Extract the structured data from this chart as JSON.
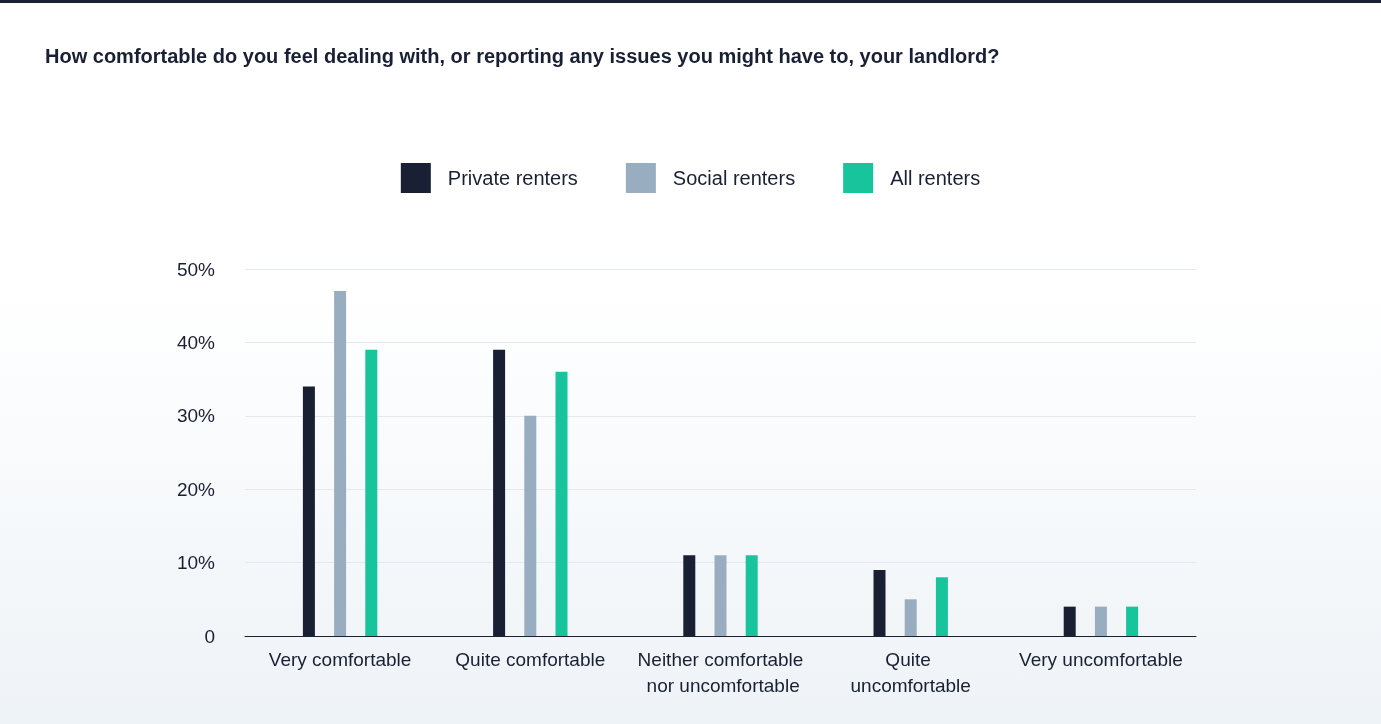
{
  "chart_data": {
    "type": "bar",
    "title": "How comfortable do you feel dealing with, or reporting any issues you might have to, your landlord?",
    "categories": [
      "Very comfortable",
      "Quite comfortable",
      "Neither comfortable nor uncomfortable",
      "Quite uncomfortable",
      "Very uncomfortable"
    ],
    "series": [
      {
        "name": "Private renters",
        "color": "#1a2033",
        "values": [
          34,
          39,
          11,
          9,
          4
        ]
      },
      {
        "name": "Social renters",
        "color": "#98adc0",
        "values": [
          47,
          30,
          11,
          5,
          4
        ]
      },
      {
        "name": "All renters",
        "color": "#17c49c",
        "values": [
          39,
          36,
          11,
          8,
          4
        ]
      }
    ],
    "ylim": [
      0,
      50
    ],
    "yticks": [
      {
        "value": 0,
        "label": "0"
      },
      {
        "value": 10,
        "label": "10%"
      },
      {
        "value": 20,
        "label": "20%"
      },
      {
        "value": 30,
        "label": "30%"
      },
      {
        "value": 40,
        "label": "40%"
      },
      {
        "value": 50,
        "label": "50%"
      }
    ],
    "grid": "y",
    "legend": "top"
  }
}
